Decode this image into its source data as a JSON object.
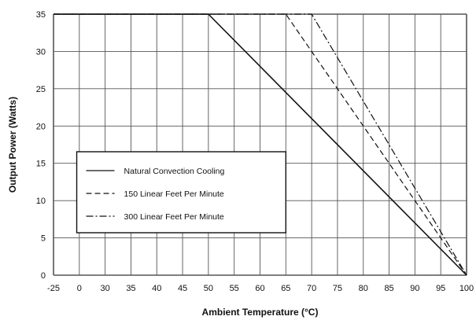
{
  "chart_data": {
    "type": "line",
    "title": "",
    "xlabel": "Ambient Temperature (°C)",
    "ylabel": "Output Power (Watts)",
    "xlim": [
      -25,
      100
    ],
    "ylim": [
      0,
      35
    ],
    "x_ticks": [
      "-25",
      "0",
      "30",
      "35",
      "40",
      "45",
      "50",
      "55",
      "60",
      "65",
      "70",
      "75",
      "80",
      "85",
      "90",
      "95",
      "100"
    ],
    "y_ticks": [
      "0",
      "5",
      "10",
      "15",
      "20",
      "25",
      "30",
      "35"
    ],
    "grid": true,
    "legend_position": "lower-left",
    "series": [
      {
        "name": "Natural Convection Cooling",
        "style": "solid",
        "x": [
          -25,
          50,
          100
        ],
        "y": [
          35,
          35,
          0
        ]
      },
      {
        "name": "150 Linear Feet Per Minute",
        "style": "dashed",
        "x": [
          -25,
          65,
          100
        ],
        "y": [
          35,
          35,
          0
        ]
      },
      {
        "name": "300 Linear Feet Per Minute",
        "style": "dashdot",
        "x": [
          -25,
          70,
          100
        ],
        "y": [
          35,
          35,
          0
        ]
      }
    ]
  }
}
